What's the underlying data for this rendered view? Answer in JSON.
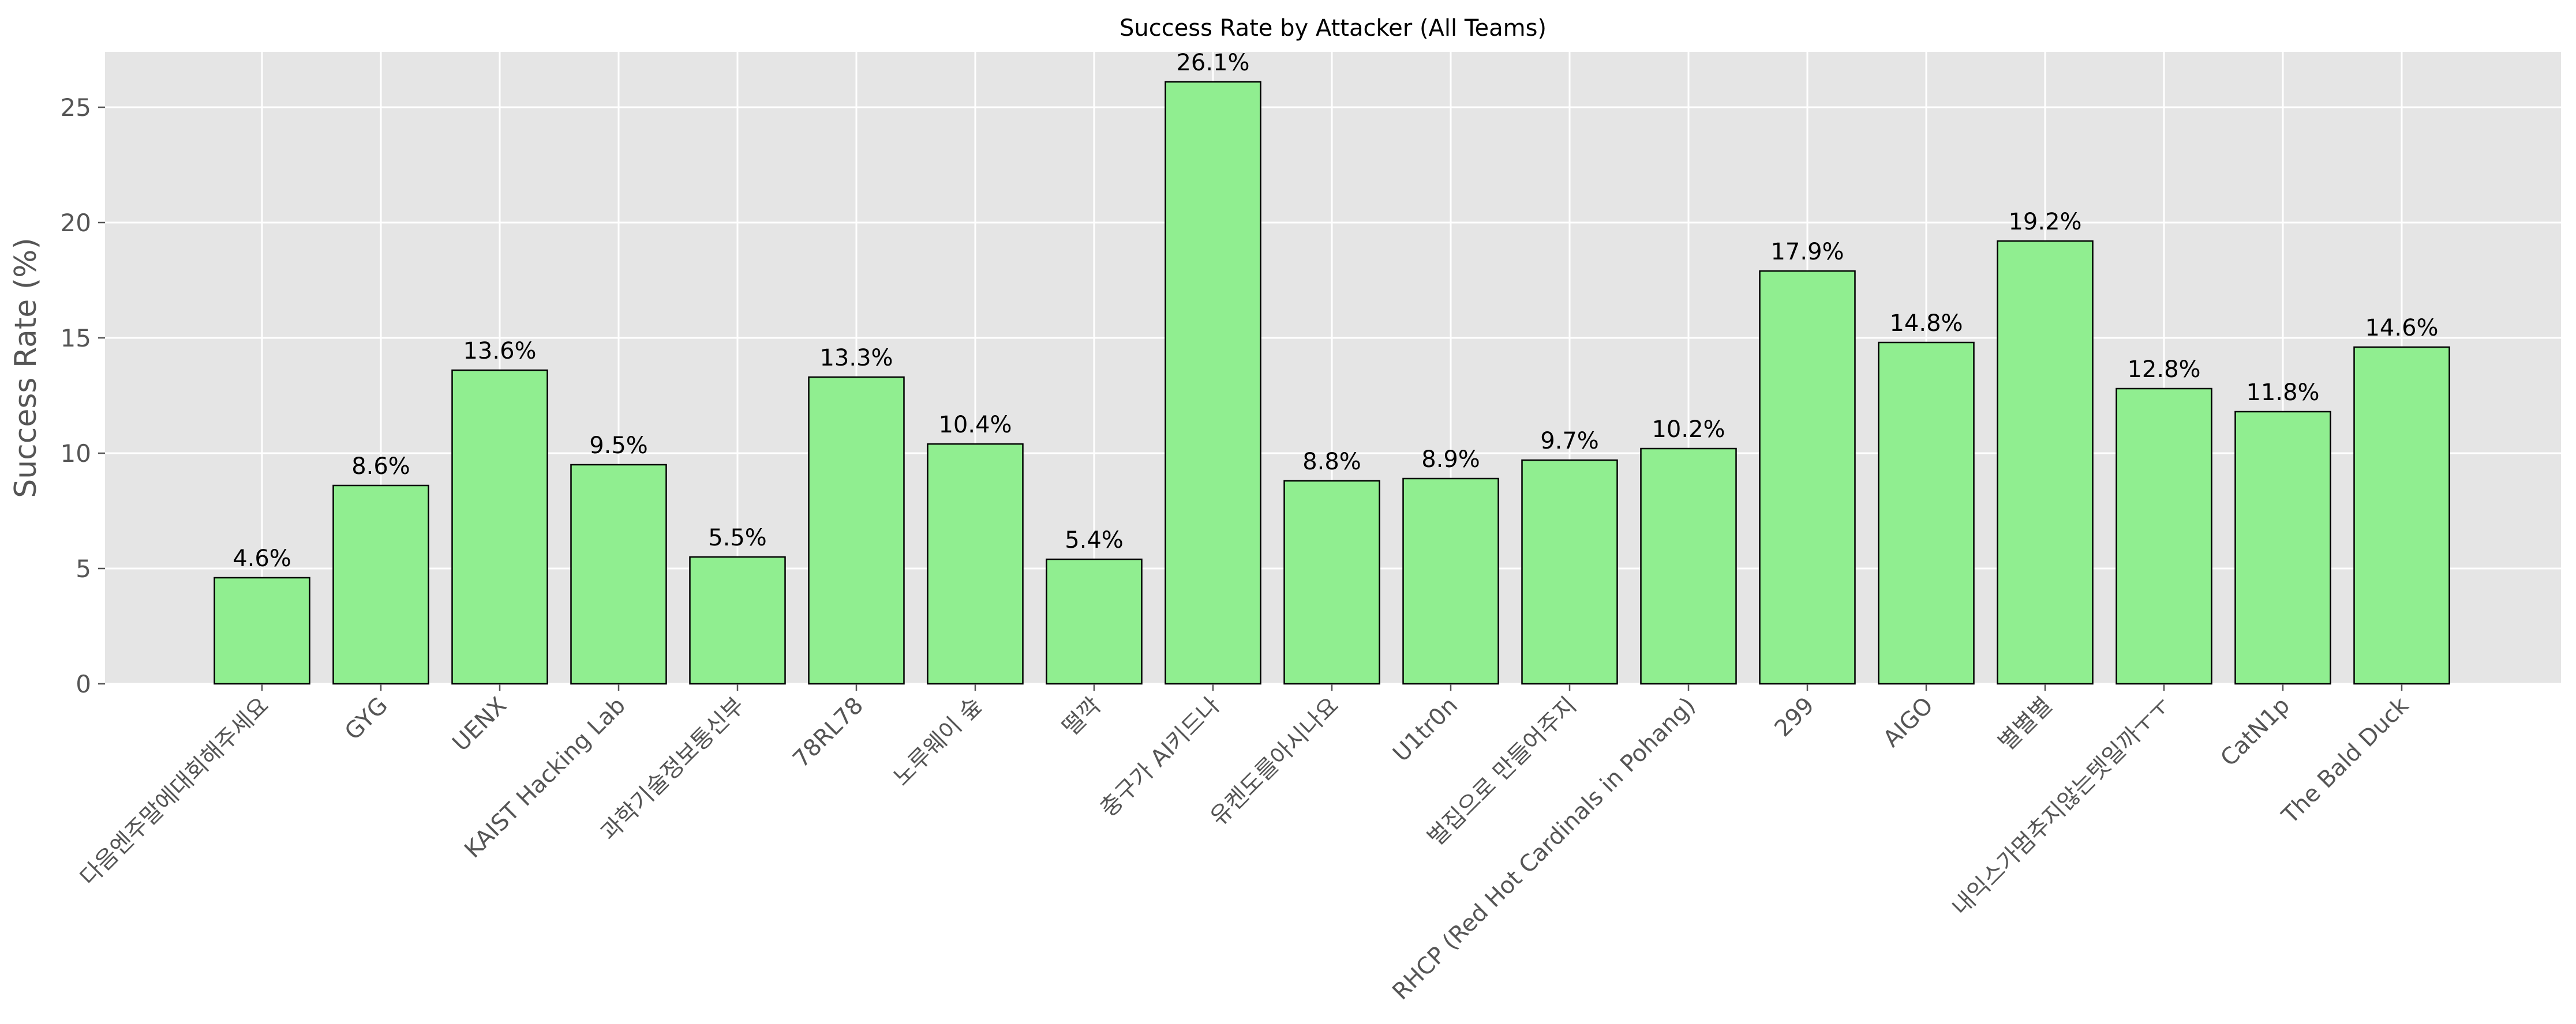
{
  "chart_data": {
    "type": "bar",
    "title": "Success Rate by Attacker (All Teams)",
    "xlabel": "",
    "ylabel": "Success Rate (%)",
    "ylim": [
      0,
      27.4
    ],
    "yticks": [
      0,
      5,
      10,
      15,
      20,
      25
    ],
    "grid": true,
    "bar_color": "#90ee90",
    "bar_edge_color": "#000000",
    "background_color": "#e5e5e5",
    "categories": [
      "다음엔주말에대회해주세요",
      "GYG",
      "UENX",
      "KAIST Hacking Lab",
      "과학기술정보통신부",
      "78RL78",
      "노루웨이 숲",
      "떨깍",
      "충구가 AI키드나",
      "유켄도를아시나요",
      "U1tr0n",
      "벌집으로 만들어주지",
      "RHCP (Red Hot Cardinals in Pohang)",
      "299",
      "AIGO",
      "별별별",
      "내익스가멈추지않는텟일까ㅜㅜ",
      "CatN1p",
      "The Bald Duck"
    ],
    "values": [
      4.6,
      8.6,
      13.6,
      9.5,
      5.5,
      13.3,
      10.4,
      5.4,
      26.1,
      8.8,
      8.9,
      9.7,
      10.2,
      17.9,
      14.8,
      19.2,
      12.8,
      11.8,
      14.6
    ],
    "data_labels": [
      "4.6%",
      "8.6%",
      "13.6%",
      "9.5%",
      "5.5%",
      "13.3%",
      "10.4%",
      "5.4%",
      "26.1%",
      "8.8%",
      "8.9%",
      "9.7%",
      "10.2%",
      "17.9%",
      "14.8%",
      "19.2%",
      "12.8%",
      "11.8%",
      "14.6%"
    ]
  }
}
